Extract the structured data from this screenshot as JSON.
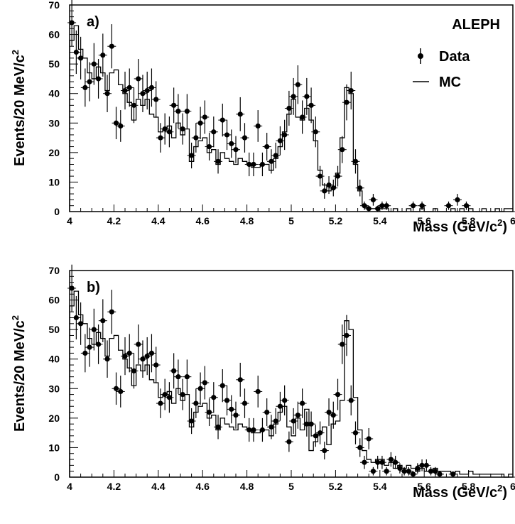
{
  "chart_data": [
    {
      "type": "scatter",
      "panel_label": "a)",
      "experiment": "ALEPH",
      "legend": {
        "data_label": "Data",
        "mc_label": "MC",
        "placement": "top-right"
      },
      "xlabel": "Mass (GeV/c",
      "xlabel_sup": "2",
      "xlabel_end": ")",
      "ylabel": "Events/20 MeV/c",
      "ylabel_sup": "2",
      "xlim": [
        4,
        6
      ],
      "ylim": [
        0,
        70
      ],
      "xticks": [
        "4",
        "4.2",
        "4.4",
        "4.6",
        "4.8",
        "5",
        "5.2",
        "5.4",
        "5.6",
        "5.8",
        "6"
      ],
      "yticks": [
        "0",
        "10",
        "20",
        "30",
        "40",
        "50",
        "60",
        "70"
      ],
      "series": [
        {
          "name": "Data",
          "marker": "circle-with-errorbars",
          "x": [
            4.01,
            4.03,
            4.05,
            4.07,
            4.09,
            4.11,
            4.13,
            4.15,
            4.17,
            4.19,
            4.21,
            4.23,
            4.25,
            4.27,
            4.29,
            4.31,
            4.33,
            4.35,
            4.37,
            4.39,
            4.41,
            4.43,
            4.45,
            4.47,
            4.49,
            4.51,
            4.53,
            4.55,
            4.57,
            4.59,
            4.61,
            4.63,
            4.65,
            4.67,
            4.69,
            4.71,
            4.73,
            4.75,
            4.77,
            4.79,
            4.81,
            4.83,
            4.85,
            4.87,
            4.89,
            4.91,
            4.93,
            4.95,
            4.97,
            4.99,
            5.01,
            5.03,
            5.05,
            5.07,
            5.09,
            5.11,
            5.13,
            5.15,
            5.17,
            5.19,
            5.21,
            5.23,
            5.25,
            5.27,
            5.29,
            5.31,
            5.33,
            5.35,
            5.37,
            5.39,
            5.41,
            5.43,
            5.45,
            5.47,
            5.49,
            5.51,
            5.53,
            5.55,
            5.57,
            5.59,
            5.61,
            5.63,
            5.65,
            5.67,
            5.69,
            5.71,
            5.73,
            5.75,
            5.77,
            5.79,
            5.81,
            5.83,
            5.85,
            5.87,
            5.89,
            5.91,
            5.93,
            5.95,
            5.97,
            5.99
          ],
          "y": [
            64,
            54,
            52,
            42,
            44,
            50,
            45,
            53,
            40,
            56,
            30,
            29,
            41,
            42,
            36,
            45,
            40,
            41,
            42,
            38,
            25,
            28,
            27,
            36,
            34,
            28,
            34,
            19,
            25,
            30,
            32,
            22,
            27,
            17,
            31,
            26,
            23,
            21,
            33,
            25,
            16,
            16,
            29,
            16,
            22,
            17,
            19,
            24,
            26,
            35,
            39,
            43,
            32,
            39,
            36,
            27,
            12,
            7,
            9,
            8,
            12,
            21,
            37,
            41,
            17,
            8,
            2,
            1,
            4,
            1,
            2,
            2,
            0,
            0,
            0,
            0,
            0,
            2,
            0,
            2,
            0,
            0,
            0,
            0,
            0,
            2,
            0,
            4,
            0,
            2,
            0,
            0,
            0,
            0,
            0,
            0,
            0,
            0,
            0,
            0
          ]
        },
        {
          "name": "MC",
          "style": "histogram-step",
          "x": [
            4.01,
            4.03,
            4.05,
            4.07,
            4.09,
            4.11,
            4.13,
            4.15,
            4.17,
            4.19,
            4.21,
            4.23,
            4.25,
            4.27,
            4.29,
            4.31,
            4.33,
            4.35,
            4.37,
            4.39,
            4.41,
            4.43,
            4.45,
            4.47,
            4.49,
            4.51,
            4.53,
            4.55,
            4.57,
            4.59,
            4.61,
            4.63,
            4.65,
            4.67,
            4.69,
            4.71,
            4.73,
            4.75,
            4.77,
            4.79,
            4.81,
            4.83,
            4.85,
            4.87,
            4.89,
            4.91,
            4.93,
            4.95,
            4.97,
            4.99,
            5.01,
            5.03,
            5.05,
            5.07,
            5.09,
            5.11,
            5.13,
            5.15,
            5.17,
            5.19,
            5.21,
            5.23,
            5.25,
            5.27,
            5.29,
            5.31,
            5.33,
            5.35,
            5.37,
            5.39,
            5.41,
            5.43,
            5.45,
            5.47,
            5.49,
            5.51,
            5.53,
            5.55,
            5.57,
            5.59,
            5.61,
            5.63,
            5.65,
            5.67,
            5.69,
            5.71,
            5.73,
            5.75,
            5.77,
            5.79,
            5.81,
            5.83,
            5.85,
            5.87,
            5.89,
            5.91,
            5.93,
            5.95,
            5.97,
            5.99
          ],
          "y": [
            58,
            63,
            55,
            52,
            47,
            45,
            49,
            47,
            41,
            47,
            48,
            43,
            40,
            37,
            31,
            38,
            36,
            38,
            33,
            32,
            27,
            28,
            29,
            25,
            30,
            26,
            28,
            17,
            22,
            24,
            25,
            20,
            21,
            16,
            20,
            18,
            17,
            16,
            18,
            17,
            16,
            15,
            15,
            16,
            16,
            14,
            18,
            22,
            27,
            33,
            38,
            32,
            31,
            35,
            31,
            24,
            14,
            9,
            7,
            8,
            13,
            25,
            42,
            40,
            16,
            7,
            2,
            1,
            1,
            1,
            1,
            1,
            0,
            1,
            0,
            0,
            1,
            0,
            0,
            1,
            0,
            0,
            1,
            0,
            0,
            0,
            1,
            0,
            1,
            0,
            1,
            0,
            0,
            1,
            0,
            0,
            1,
            0,
            1,
            1
          ]
        }
      ]
    },
    {
      "type": "scatter",
      "panel_label": "b)",
      "xlabel": "Mass (GeV/c",
      "xlabel_sup": "2",
      "xlabel_end": ")",
      "ylabel": "Events/20 MeV/c",
      "ylabel_sup": "2",
      "xlim": [
        4,
        6
      ],
      "ylim": [
        0,
        70
      ],
      "xticks": [
        "4",
        "4.2",
        "4.4",
        "4.6",
        "4.8",
        "5",
        "5.2",
        "5.4",
        "5.6",
        "5.8",
        "6"
      ],
      "yticks": [
        "0",
        "10",
        "20",
        "30",
        "40",
        "50",
        "60",
        "70"
      ],
      "series": [
        {
          "name": "Data",
          "marker": "circle-with-errorbars",
          "x": [
            4.01,
            4.03,
            4.05,
            4.07,
            4.09,
            4.11,
            4.13,
            4.15,
            4.17,
            4.19,
            4.21,
            4.23,
            4.25,
            4.27,
            4.29,
            4.31,
            4.33,
            4.35,
            4.37,
            4.39,
            4.41,
            4.43,
            4.45,
            4.47,
            4.49,
            4.51,
            4.53,
            4.55,
            4.57,
            4.59,
            4.61,
            4.63,
            4.65,
            4.67,
            4.69,
            4.71,
            4.73,
            4.75,
            4.77,
            4.79,
            4.81,
            4.83,
            4.85,
            4.87,
            4.89,
            4.91,
            4.93,
            4.95,
            4.97,
            4.99,
            5.01,
            5.03,
            5.05,
            5.07,
            5.09,
            5.11,
            5.13,
            5.15,
            5.17,
            5.19,
            5.21,
            5.23,
            5.25,
            5.27,
            5.29,
            5.31,
            5.33,
            5.35,
            5.37,
            5.39,
            5.41,
            5.43,
            5.45,
            5.47,
            5.49,
            5.51,
            5.53,
            5.55,
            5.57,
            5.59,
            5.61,
            5.63,
            5.65,
            5.67,
            5.69,
            5.71,
            5.73,
            5.75,
            5.77,
            5.79,
            5.81,
            5.83,
            5.85,
            5.87,
            5.89,
            5.91,
            5.93,
            5.95,
            5.97,
            5.99
          ],
          "y": [
            64,
            54,
            52,
            42,
            44,
            50,
            45,
            53,
            40,
            56,
            30,
            29,
            41,
            42,
            36,
            45,
            40,
            41,
            42,
            38,
            25,
            28,
            27,
            36,
            34,
            28,
            34,
            19,
            25,
            30,
            32,
            22,
            27,
            17,
            31,
            26,
            23,
            21,
            33,
            25,
            16,
            16,
            29,
            16,
            22,
            17,
            19,
            24,
            26,
            12,
            19,
            21,
            25,
            18,
            18,
            14,
            15,
            9,
            22,
            21,
            28,
            45,
            48,
            26,
            15,
            10,
            5,
            13,
            2,
            5,
            5,
            2,
            6,
            5,
            3,
            2,
            2,
            1,
            3,
            4,
            4,
            2,
            2,
            1,
            0,
            0,
            1,
            0,
            0,
            0,
            0,
            0,
            0,
            0,
            0,
            0,
            0,
            0,
            0,
            0
          ]
        },
        {
          "name": "MC",
          "style": "histogram-step",
          "x": [
            4.01,
            4.03,
            4.05,
            4.07,
            4.09,
            4.11,
            4.13,
            4.15,
            4.17,
            4.19,
            4.21,
            4.23,
            4.25,
            4.27,
            4.29,
            4.31,
            4.33,
            4.35,
            4.37,
            4.39,
            4.41,
            4.43,
            4.45,
            4.47,
            4.49,
            4.51,
            4.53,
            4.55,
            4.57,
            4.59,
            4.61,
            4.63,
            4.65,
            4.67,
            4.69,
            4.71,
            4.73,
            4.75,
            4.77,
            4.79,
            4.81,
            4.83,
            4.85,
            4.87,
            4.89,
            4.91,
            4.93,
            4.95,
            4.97,
            4.99,
            5.01,
            5.03,
            5.05,
            5.07,
            5.09,
            5.11,
            5.13,
            5.15,
            5.17,
            5.19,
            5.21,
            5.23,
            5.25,
            5.27,
            5.29,
            5.31,
            5.33,
            5.35,
            5.37,
            5.39,
            5.41,
            5.43,
            5.45,
            5.47,
            5.49,
            5.51,
            5.53,
            5.55,
            5.57,
            5.59,
            5.61,
            5.63,
            5.65,
            5.67,
            5.69,
            5.71,
            5.73,
            5.75,
            5.77,
            5.79,
            5.81,
            5.83,
            5.85,
            5.87,
            5.89,
            5.91,
            5.93,
            5.95,
            5.97,
            5.99
          ],
          "y": [
            58,
            63,
            55,
            52,
            47,
            45,
            49,
            47,
            41,
            47,
            48,
            43,
            40,
            37,
            31,
            38,
            36,
            38,
            33,
            32,
            27,
            28,
            29,
            25,
            30,
            26,
            28,
            17,
            22,
            24,
            25,
            20,
            21,
            16,
            20,
            18,
            17,
            16,
            18,
            17,
            16,
            15,
            15,
            16,
            16,
            14,
            18,
            22,
            24,
            17,
            14,
            20,
            16,
            23,
            9,
            12,
            15,
            17,
            11,
            18,
            19,
            26,
            53,
            50,
            27,
            16,
            9,
            6,
            5,
            6,
            6,
            4,
            5,
            3,
            4,
            3,
            4,
            3,
            2,
            3,
            2,
            2,
            3,
            2,
            2,
            2,
            1,
            2,
            1,
            1,
            2,
            1,
            1,
            1,
            1,
            1,
            1,
            1,
            0,
            1
          ]
        }
      ]
    }
  ]
}
